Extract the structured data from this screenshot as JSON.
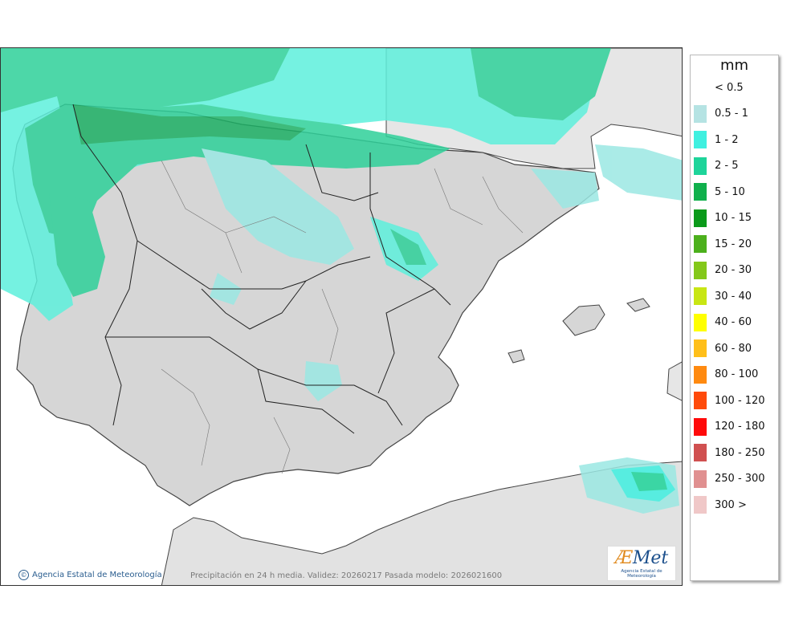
{
  "map": {
    "credit": "Agencia Estatal de Meteorología",
    "caption": "Precipitación en 24 h media. Validez: 20260217 Pasada modelo: 2026021600",
    "logo_text": "Met",
    "logo_prefix": "Æ",
    "logo_subtitle": "Agencia Estatal de Meteorología"
  },
  "legend": {
    "unit": "mm",
    "entries": [
      {
        "label": "< 0.5",
        "color": "#ffffff"
      },
      {
        "label": "0.5 - 1",
        "color": "#b5e3e3"
      },
      {
        "label": "1 - 2",
        "color": "#3ff0e0"
      },
      {
        "label": "2 - 5",
        "color": "#1ed49a"
      },
      {
        "label": "5 - 10",
        "color": "#10b04c"
      },
      {
        "label": "10 - 15",
        "color": "#0a9a1a"
      },
      {
        "label": "15 - 20",
        "color": "#4cb01c"
      },
      {
        "label": "20 - 30",
        "color": "#84c81a"
      },
      {
        "label": "30 - 40",
        "color": "#c8e614"
      },
      {
        "label": "40 - 60",
        "color": "#ffff00"
      },
      {
        "label": "60 - 80",
        "color": "#ffbf1a"
      },
      {
        "label": "80 - 100",
        "color": "#ff8a10"
      },
      {
        "label": "100 - 120",
        "color": "#ff4a0a"
      },
      {
        "label": "120 - 180",
        "color": "#ff0a0a"
      },
      {
        "label": "180 - 250",
        "color": "#d05050"
      },
      {
        "label": "250 - 300",
        "color": "#e09090"
      },
      {
        "label": "300 >",
        "color": "#f0c8c8"
      }
    ]
  }
}
